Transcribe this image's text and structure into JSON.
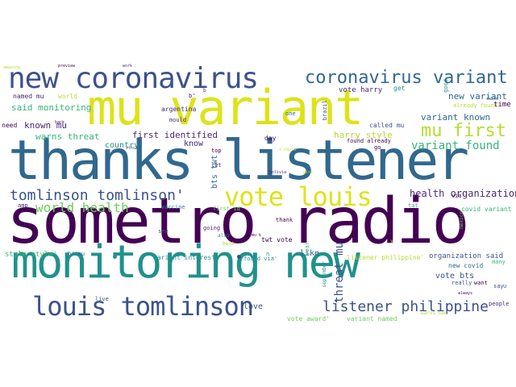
{
  "colors": {
    "background": "#ffffff",
    "yellow": "#dde318",
    "dark_purple": "#440154",
    "purple": "#482878",
    "blue": "#3b528b",
    "steel": "#31688e",
    "teal": "#21918c",
    "green": "#35b779",
    "lime": "#6ece58",
    "olive": "#b5de2b"
  },
  "words": [
    {
      "text": "sometro radio",
      "color": "#440154"
    },
    {
      "text": "thanks listener",
      "color": "#31688e"
    },
    {
      "text": "mu variant",
      "color": "#dde318"
    },
    {
      "text": "monitoring new",
      "color": "#21918c"
    },
    {
      "text": "new coronavirus",
      "color": "#3b528b"
    },
    {
      "text": "vote louis",
      "color": "#dde318"
    },
    {
      "text": "louis tomlinson",
      "color": "#3b528b"
    },
    {
      "text": "coronavirus variant",
      "color": "#31688e"
    },
    {
      "text": "tomlinson tomlinson'",
      "color": "#3b528b"
    },
    {
      "text": "listener philippine",
      "color": "#3b528b"
    },
    {
      "text": "world health",
      "color": "#6ece58"
    },
    {
      "text": "mu first",
      "color": "#b5de2b"
    },
    {
      "text": "variant found",
      "color": "#35b779"
    },
    {
      "text": "health organization",
      "color": "#482878"
    },
    {
      "text": "threat mu",
      "color": "#3b528b"
    },
    {
      "text": "said monitoring",
      "color": "#35b779"
    },
    {
      "text": "first identified",
      "color": "#482878"
    },
    {
      "text": "warns threat",
      "color": "#35b779"
    },
    {
      "text": "known mu",
      "color": "#482878"
    },
    {
      "text": "variant known",
      "color": "#31688e"
    },
    {
      "text": "new variant",
      "color": "#31688e"
    },
    {
      "text": "vote harry",
      "color": "#482878"
    },
    {
      "text": "harry style",
      "color": "#b5de2b"
    },
    {
      "text": "country",
      "color": "#21918c"
    },
    {
      "text": "know",
      "color": "#482878"
    },
    {
      "text": "like",
      "color": "#31688e"
    },
    {
      "text": "love",
      "color": "#3b528b"
    },
    {
      "text": "vote bts",
      "color": "#3b528b"
    },
    {
      "text": "bts twt",
      "color": "#31688e"
    },
    {
      "text": "twt vote",
      "color": "#440154"
    },
    {
      "text": "style style'",
      "color": "#35b779"
    },
    {
      "text": "variant interest",
      "color": "#21918c"
    },
    {
      "text": "organization said",
      "color": "#3b528b"
    },
    {
      "text": "new covid",
      "color": "#31688e"
    },
    {
      "text": "covid variant",
      "color": "#35b779"
    },
    {
      "text": "variant named",
      "color": "#6ece58"
    },
    {
      "text": "vote award'",
      "color": "#6ece58"
    },
    {
      "text": "listener philippine'",
      "color": "#b5de2b"
    },
    {
      "text": "found via'",
      "color": "#21918c"
    },
    {
      "text": "already found",
      "color": "#b5de2b"
    },
    {
      "text": "found already",
      "color": "#440154"
    },
    {
      "text": "called mu",
      "color": "#3b528b"
    },
    {
      "text": "argentina",
      "color": "#482878"
    },
    {
      "text": "world",
      "color": "#b5de2b"
    },
    {
      "text": "named mu",
      "color": "#482878"
    },
    {
      "text": "need",
      "color": "#440154"
    },
    {
      "text": "time",
      "color": "#440154"
    },
    {
      "text": "make",
      "color": "#31688e"
    },
    {
      "text": "get",
      "color": "#21918c"
    },
    {
      "text": "good",
      "color": "#21918c"
    },
    {
      "text": "brazil",
      "color": "#3b528b"
    },
    {
      "text": "one",
      "color": "#31688e"
    },
    {
      "text": "mould",
      "color": "#482878"
    },
    {
      "text": "day",
      "color": "#440154"
    },
    {
      "text": "go",
      "color": "#440154"
    },
    {
      "text": "top",
      "color": "#440154"
    },
    {
      "text": "let",
      "color": "#482878"
    },
    {
      "text": "first id'",
      "color": "#6ece58"
    },
    {
      "text": "vaccine",
      "color": "#21918c"
    },
    {
      "text": "amp",
      "color": "#482878"
    },
    {
      "text": "see",
      "color": "#3b528b"
    },
    {
      "text": "going",
      "color": "#482878"
    },
    {
      "text": "also",
      "color": "#21918c"
    },
    {
      "text": "best",
      "color": "#b5de2b"
    },
    {
      "text": "thank",
      "color": "#440154"
    },
    {
      "text": "year",
      "color": "#35b779"
    },
    {
      "text": "september",
      "color": "#21918c"
    },
    {
      "text": "people",
      "color": "#482878"
    },
    {
      "text": "really",
      "color": "#3b528b"
    },
    {
      "text": "want",
      "color": "#440154"
    },
    {
      "text": "say",
      "color": "#3b528b"
    },
    {
      "text": "u",
      "color": "#31688e"
    },
    {
      "text": "many",
      "color": "#35b779"
    },
    {
      "text": "always",
      "color": "#440154"
    },
    {
      "text": "warns new",
      "color": "#b5de2b"
    },
    {
      "text": "live",
      "color": "#3b528b"
    },
    {
      "text": "via'",
      "color": "#440154"
    },
    {
      "text": "mexico",
      "color": "#6ece58"
    },
    {
      "text": "girl",
      "color": "#b5de2b"
    },
    {
      "text": "bolivia",
      "color": "#482878"
    },
    {
      "text": "back",
      "color": "#440154"
    },
    {
      "text": "stock",
      "color": "#3b528b"
    },
    {
      "text": "preview",
      "color": "#440154"
    },
    {
      "text": "work",
      "color": "#482878"
    },
    {
      "text": "b' mu",
      "color": "#31688e"
    },
    {
      "text": "b'",
      "color": "#440154"
    },
    {
      "text": "b",
      "color": "#482878"
    },
    {
      "text": "mu k",
      "color": "#440154"
    },
    {
      "text": "v",
      "color": "#b5de2b"
    },
    {
      "text": "n",
      "color": "#21918c"
    },
    {
      "text": "tat",
      "color": "#35b779"
    },
    {
      "text": "i could",
      "color": "#b5de2b"
    },
    {
      "text": "amazing",
      "color": "#b5de2b"
    }
  ]
}
